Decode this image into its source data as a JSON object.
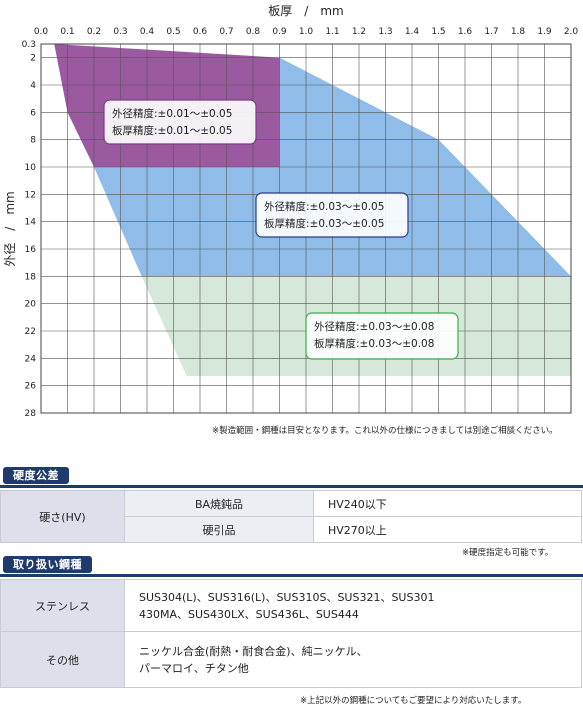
{
  "chart_data": {
    "type": "area",
    "xlabel": "板厚　/　mm",
    "ylabel": "外径　/　mm",
    "x_ticks": [
      "0.0",
      "0.1",
      "0.2",
      "0.3",
      "0.4",
      "0.5",
      "0.6",
      "0.7",
      "0.8",
      "0.9",
      "1.0",
      "1.1",
      "1.2",
      "1.3",
      "1.4",
      "1.5",
      "1.6",
      "1.7",
      "1.8",
      "1.9",
      "2.0"
    ],
    "y_ticks": [
      "0.3",
      "2",
      "4",
      "6",
      "8",
      "10",
      "12",
      "14",
      "16",
      "18",
      "20",
      "22",
      "24",
      "26",
      "28"
    ],
    "xlim": [
      0,
      2.0
    ],
    "ylim": [
      0.3,
      28
    ],
    "grid": true,
    "regions": [
      {
        "color": "#d5e8da",
        "polygon": [
          [
            0.55,
            25.3
          ],
          [
            2.0,
            25.3
          ],
          [
            2.0,
            18
          ],
          [
            0.38,
            18
          ]
        ],
        "label_lines": [
          "外径精度:±0.03〜±0.08",
          "板厚精度:±0.03〜±0.08"
        ],
        "border_color": "#3cae48"
      },
      {
        "color": "#8fbce8",
        "polygon": [
          [
            0.9,
            2
          ],
          [
            1.5,
            8
          ],
          [
            2.0,
            18
          ],
          [
            0.38,
            18
          ],
          [
            0.2,
            10
          ],
          [
            0.9,
            10
          ]
        ],
        "label_lines": [
          "外径精度:±0.03〜±0.05",
          "板厚精度:±0.03〜±0.05"
        ],
        "border_color": "#2a3a8c"
      },
      {
        "color": "#9b5aa0",
        "polygon": [
          [
            0.05,
            0.3
          ],
          [
            0.9,
            2
          ],
          [
            0.9,
            10
          ],
          [
            0.2,
            10
          ],
          [
            0.1,
            6
          ]
        ],
        "label_lines": [
          "外径精度:±0.01〜±0.05",
          "板厚精度:±0.01〜±0.05"
        ],
        "border_color": "#7a3d85"
      }
    ]
  },
  "chart_note": "※製造範囲・鋼種は目安となります。これ以外の仕様につきましては別途ご相談ください。",
  "hardness": {
    "tag": "硬度公差",
    "row_label": "硬さ(HV)",
    "rows": [
      {
        "name": "BA焼鈍品",
        "value": "HV240以下"
      },
      {
        "name": "硬引品",
        "value": "HV270以上"
      }
    ],
    "note": "※硬度指定も可能です。"
  },
  "steel": {
    "tag": "取り扱い鋼種",
    "rows": [
      {
        "name": "ステンレス",
        "lines": [
          "SUS304(L)、SUS316(L)、SUS310S、SUS321、SUS301",
          "430MA、SUS430LX、SUS436L、SUS444"
        ]
      },
      {
        "name": "その他",
        "lines": [
          "ニッケル合金(耐熱・耐食合金)、純ニッケル、",
          "パーマロイ、チタン他"
        ]
      }
    ],
    "note": "※上記以外の鋼種についてもご要望により対応いたします。"
  }
}
